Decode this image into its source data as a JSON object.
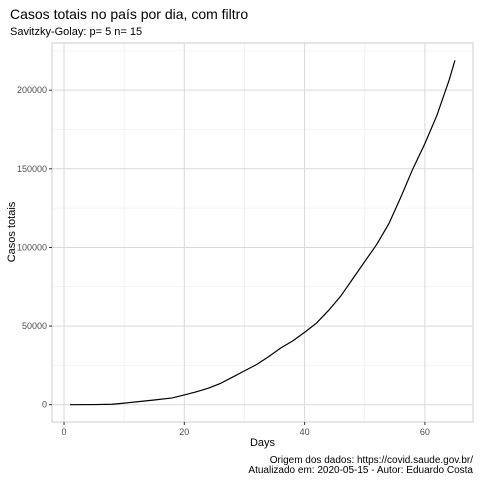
{
  "chart_data": {
    "type": "line",
    "title": "Casos totais no país por dia, com filtro",
    "subtitle": "Savitzky-Golay: p= 5 n= 15",
    "xlabel": "Days",
    "ylabel": "Casos totais",
    "xlim": [
      -2,
      68
    ],
    "ylim": [
      -11000,
      230000
    ],
    "xticks": [
      0,
      20,
      40,
      60
    ],
    "yticks": [
      0,
      50000,
      100000,
      150000,
      200000
    ],
    "grid": true,
    "legend": "none",
    "line_color": "#000000",
    "series": [
      {
        "x": [
          1,
          5,
          8,
          10,
          12,
          15,
          18,
          20,
          22,
          24,
          26,
          28,
          30,
          32,
          34,
          36,
          38,
          40,
          42,
          44,
          46,
          48,
          50,
          52,
          54,
          56,
          58,
          60,
          62,
          64,
          65
        ],
        "y": [
          0,
          100,
          300,
          1000,
          1800,
          3000,
          4300,
          6200,
          8200,
          10500,
          13500,
          17500,
          21500,
          25500,
          30500,
          36000,
          40500,
          46000,
          52000,
          60000,
          69000,
          80000,
          91000,
          102000,
          115000,
          132000,
          150000,
          166000,
          184000,
          206000,
          219000
        ]
      }
    ],
    "caption": [
      "Origem dos dados: https://covid.saude.gov.br/",
      "Atualizado em: 2020-05-15    -   Autor: Eduardo Costa"
    ]
  }
}
